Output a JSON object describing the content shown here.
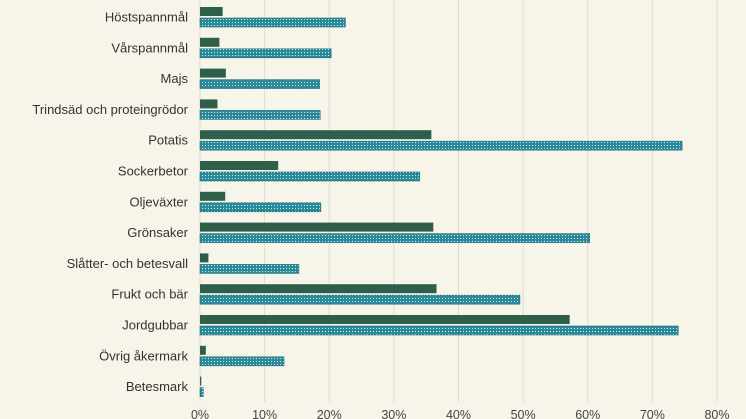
{
  "chart_data": {
    "type": "bar",
    "orientation": "horizontal",
    "categories": [
      "Höstspannmål",
      "Vårspannmål",
      "Majs",
      "Trindsäd och proteingrödor",
      "Potatis",
      "Sockerbetor",
      "Oljeväxter",
      "Grönsaker",
      "Slåtter- och betesvall",
      "Frukt och bär",
      "Jordgubbar",
      "Övrig åkermark",
      "Betesmark"
    ],
    "series": [
      {
        "values": [
          3.5,
          3.0,
          4.0,
          2.7,
          35.8,
          12.1,
          3.9,
          36.1,
          1.3,
          36.6,
          57.2,
          0.9,
          0.2
        ],
        "color": "#2e5f4a",
        "pattern": "solid"
      },
      {
        "values": [
          22.5,
          20.3,
          18.5,
          18.6,
          74.6,
          34.0,
          18.7,
          60.3,
          15.3,
          49.5,
          74.0,
          13.0,
          0.5
        ],
        "color": "#2a8a9a",
        "pattern": "crosshatch"
      }
    ],
    "xlim": [
      0,
      80
    ],
    "xticks": [
      "0%",
      "10%",
      "20%",
      "30%",
      "40%",
      "50%",
      "60%",
      "70%",
      "80%"
    ],
    "grid": true,
    "legend": "none"
  }
}
